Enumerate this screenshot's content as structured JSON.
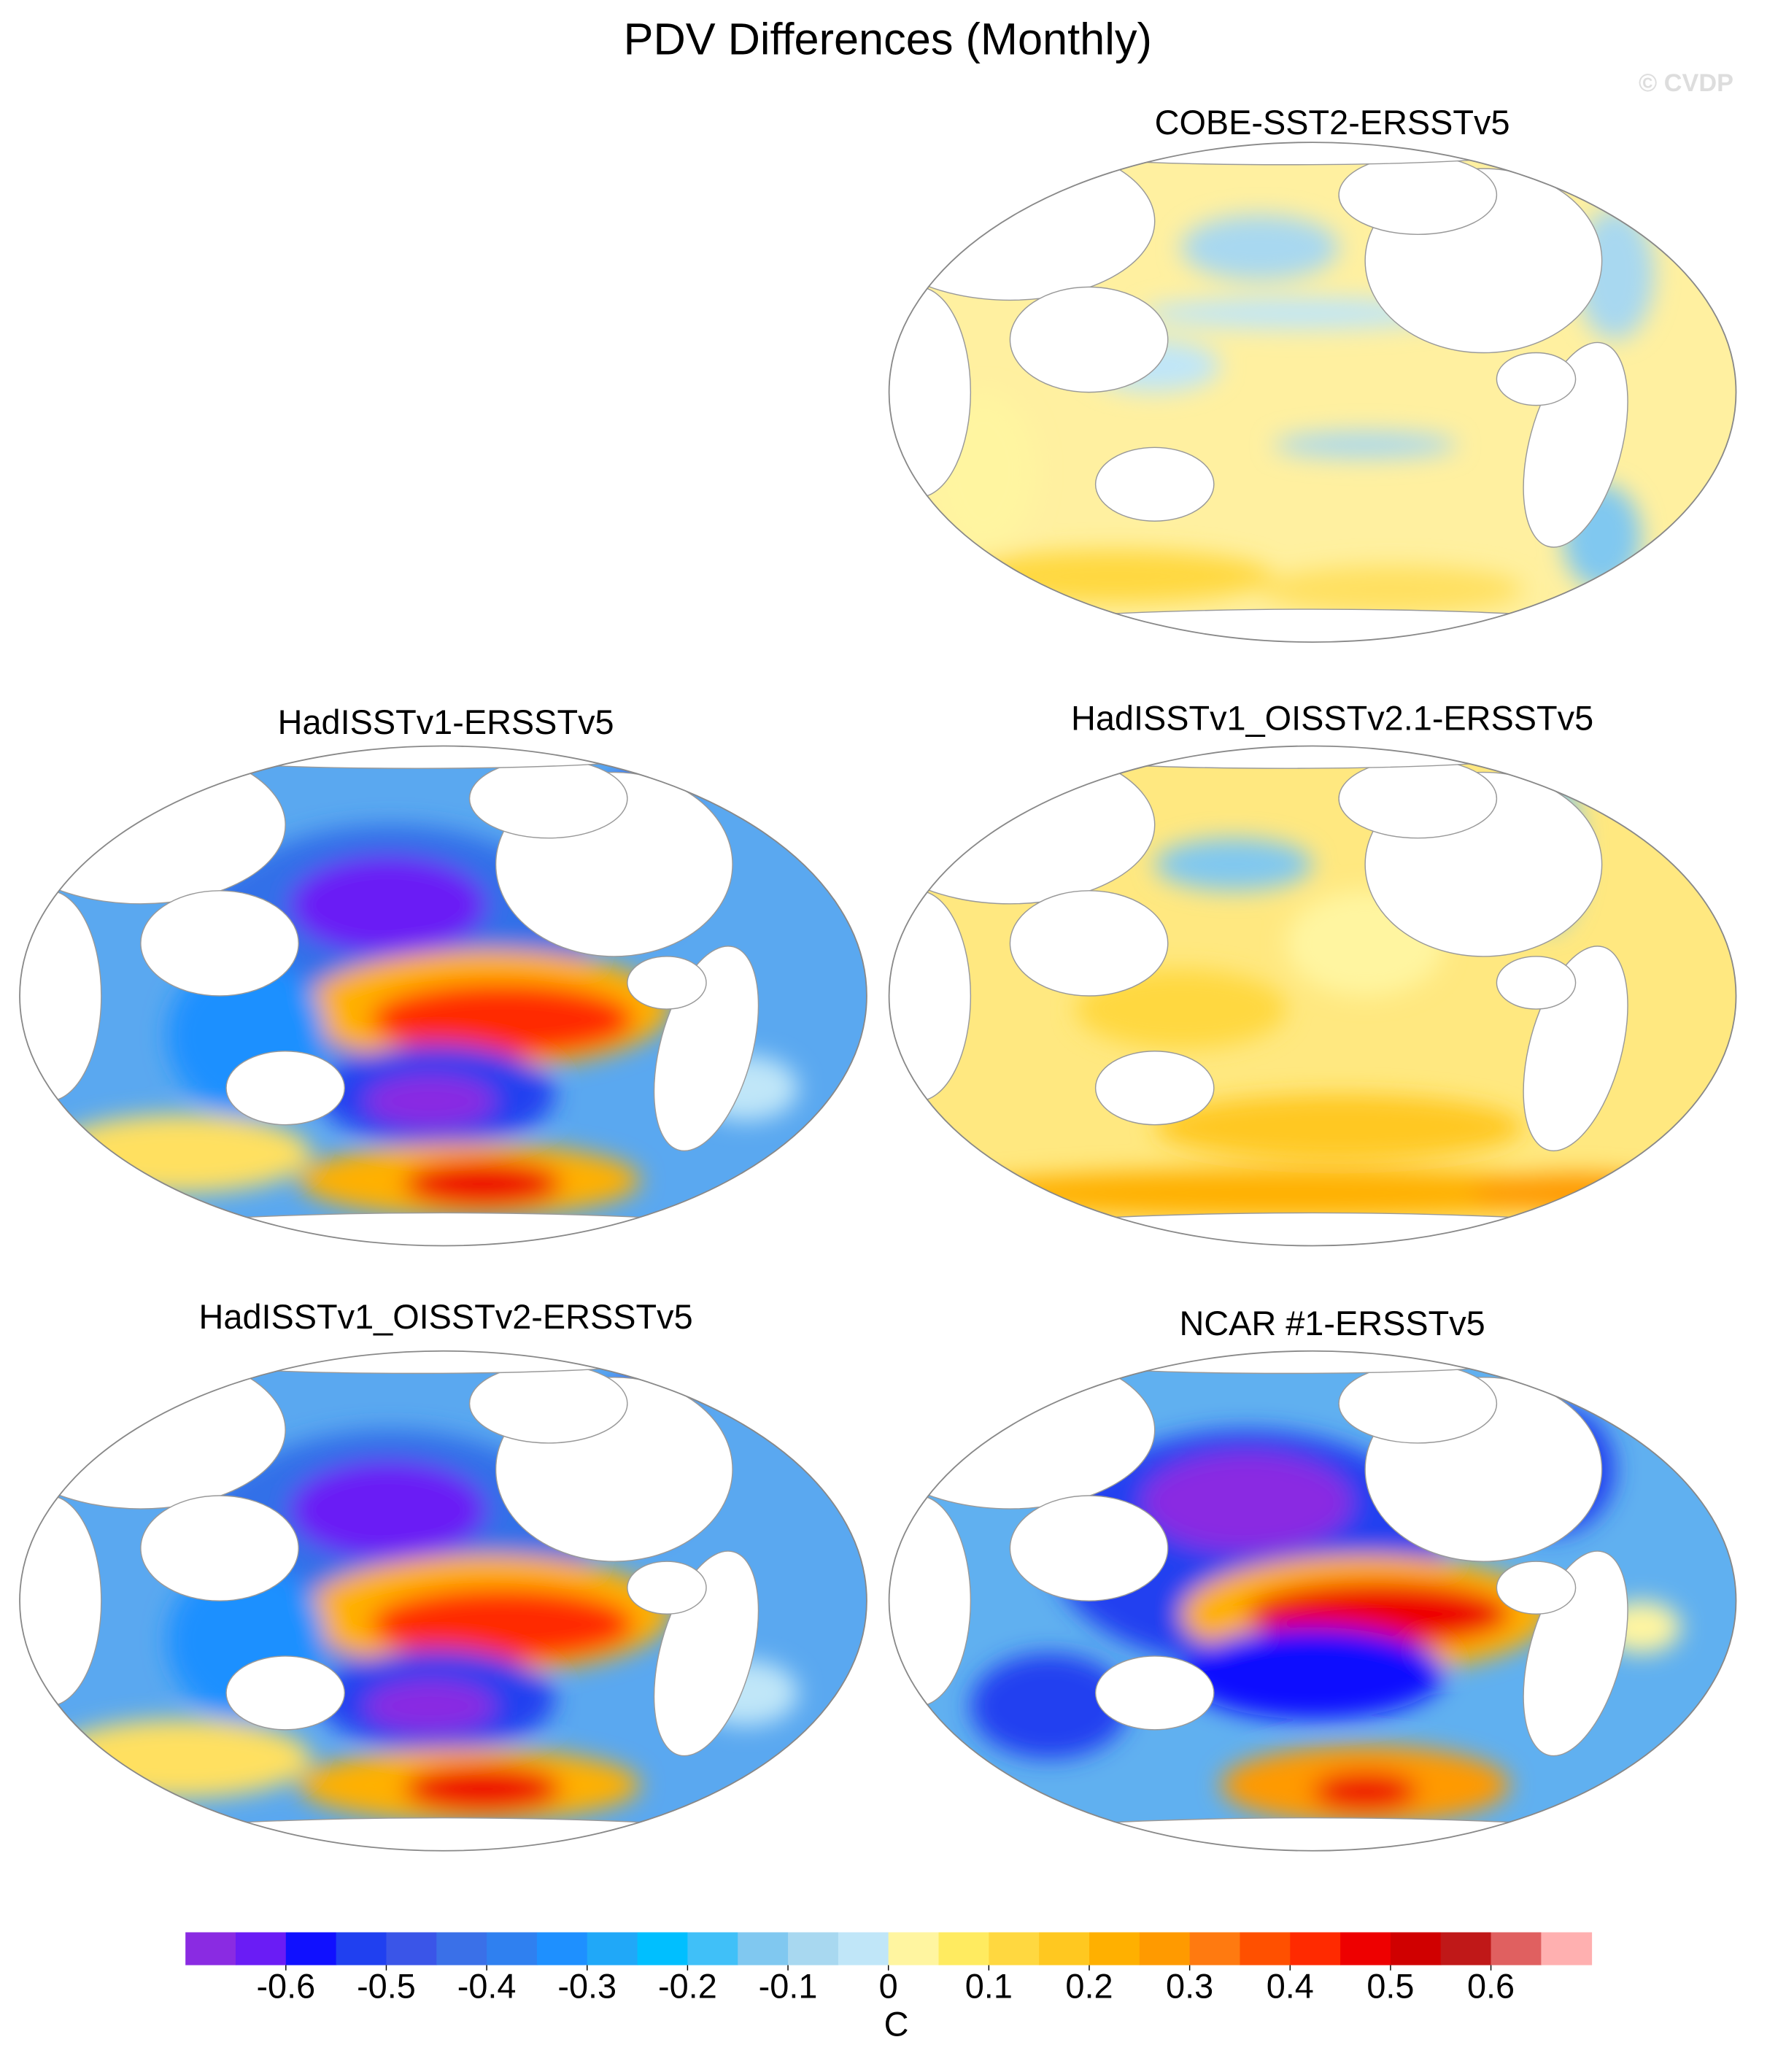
{
  "header": {
    "title": "PDV Differences (Monthly)",
    "watermark": "© CVDP"
  },
  "panels": [
    {
      "title": "COBE-SST2-ERSSTv5"
    },
    {
      "title": "HadISSTv1-ERSSTv5"
    },
    {
      "title": "HadISSTv1_OISSTv2.1-ERSSTv5"
    },
    {
      "title": "HadISSTv1_OISSTv2-ERSSTv5"
    },
    {
      "title": "NCAR #1-ERSSTv5"
    }
  ],
  "colorbar": {
    "label": "C",
    "lim": [
      -0.7,
      0.7
    ],
    "ticks": [
      -0.6,
      -0.5,
      -0.4,
      -0.3,
      -0.2,
      -0.1,
      0,
      0.1,
      0.2,
      0.3,
      0.4,
      0.5,
      0.6
    ],
    "colors": [
      "#8a2be2",
      "#6a1cf5",
      "#1010ff",
      "#2040f0",
      "#3a55e8",
      "#3a70e8",
      "#2f80f0",
      "#1e90ff",
      "#20a8f8",
      "#00bfff",
      "#40c0f8",
      "#80c8f0",
      "#a8d8f0",
      "#c0e6f8",
      "#fff5a0",
      "#ffeb60",
      "#ffd840",
      "#ffc820",
      "#ffb000",
      "#ff9a00",
      "#ff7a10",
      "#ff5000",
      "#ff2a00",
      "#ee0000",
      "#d00000",
      "#c01818",
      "#e06060",
      "#ffb0b0"
    ]
  }
}
